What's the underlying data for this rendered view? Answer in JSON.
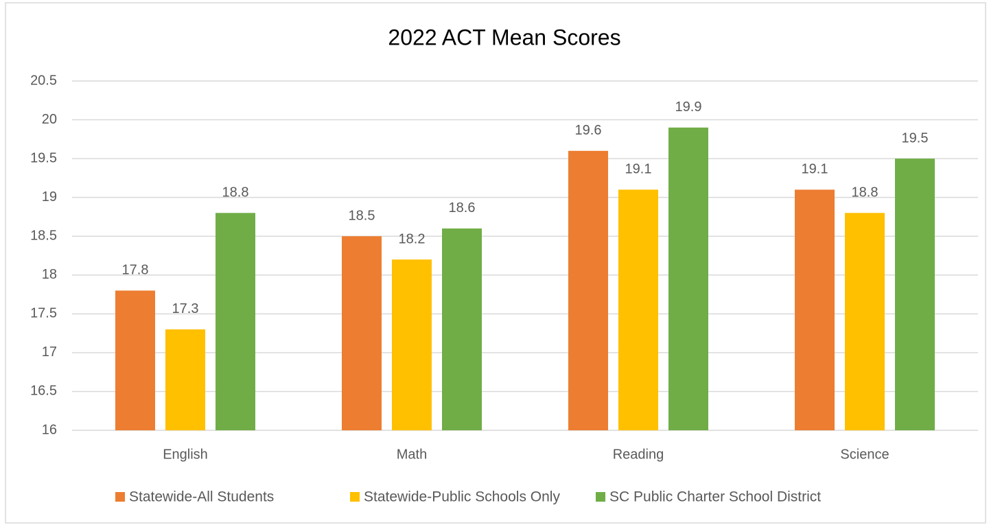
{
  "chart_data": {
    "type": "bar",
    "title": "2022 ACT Mean Scores",
    "categories": [
      "English",
      "Math",
      "Reading",
      "Science"
    ],
    "series": [
      {
        "name": "Statewide-All Students",
        "color": "#ED7D31",
        "values": [
          17.8,
          18.5,
          19.6,
          19.1
        ]
      },
      {
        "name": "Statewide-Public Schools Only",
        "color": "#FFC000",
        "values": [
          17.3,
          18.2,
          19.1,
          18.8
        ]
      },
      {
        "name": "SC Public Charter School District",
        "color": "#70AD47",
        "values": [
          18.8,
          18.6,
          19.9,
          19.5
        ]
      }
    ],
    "ylim": [
      16,
      20.5
    ],
    "yticks": [
      16,
      16.5,
      17,
      17.5,
      18,
      18.5,
      19,
      19.5,
      20,
      20.5
    ],
    "grid": true,
    "legend": "bottom"
  }
}
